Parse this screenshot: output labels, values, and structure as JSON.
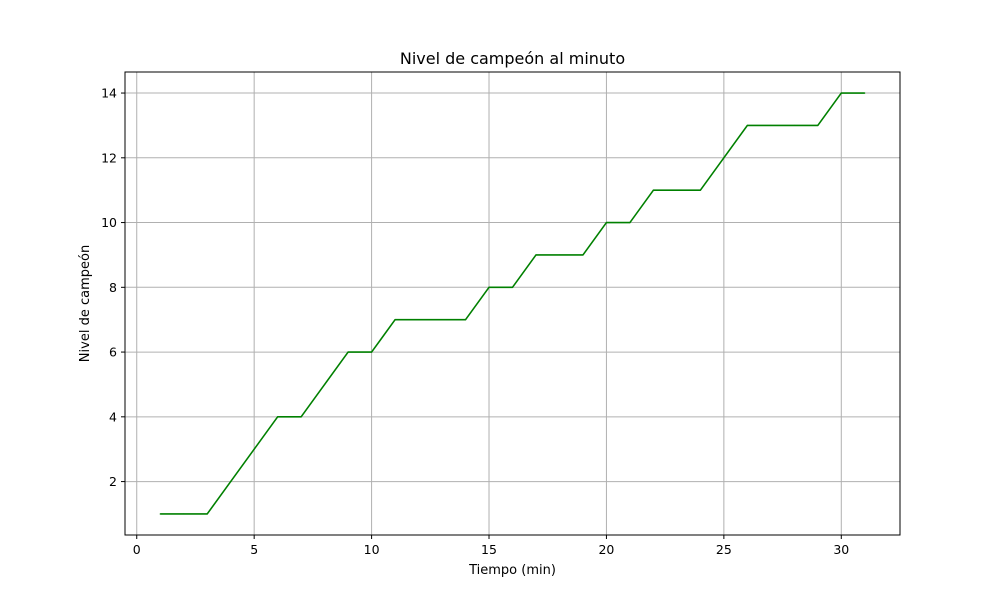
{
  "chart_data": {
    "type": "line",
    "title": "Nivel de campeón al minuto",
    "xlabel": "Tiempo (min)",
    "ylabel": "Nivel de campeón",
    "xlim": [
      -0.5,
      32.5
    ],
    "ylim": [
      0.35,
      14.65
    ],
    "xticks": [
      0,
      5,
      10,
      15,
      20,
      25,
      30
    ],
    "yticks": [
      2,
      4,
      6,
      8,
      10,
      12,
      14
    ],
    "grid": true,
    "series": [
      {
        "color": "#008000",
        "x": [
          1,
          2,
          3,
          4,
          5,
          6,
          7,
          8,
          9,
          10,
          11,
          12,
          13,
          14,
          15,
          16,
          17,
          18,
          19,
          20,
          21,
          22,
          23,
          24,
          25,
          26,
          27,
          28,
          29,
          30,
          31
        ],
        "y": [
          1,
          1,
          1,
          2,
          3,
          4,
          4,
          5,
          6,
          6,
          7,
          7,
          7,
          7,
          8,
          8,
          9,
          9,
          9,
          10,
          10,
          11,
          11,
          11,
          12,
          13,
          13,
          13,
          13,
          14,
          14
        ]
      }
    ]
  }
}
